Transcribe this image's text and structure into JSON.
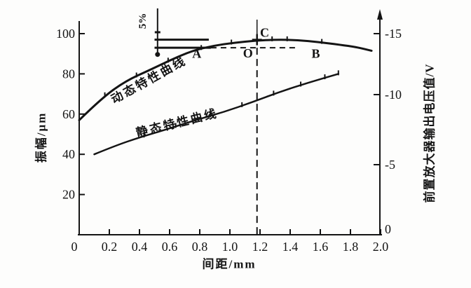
{
  "chart_data": {
    "type": "line",
    "title": "",
    "xlabel": "间距/mm",
    "ylabel_left": "振幅/μm",
    "ylabel_right": "前置放大器输出电压值/V",
    "xlim": [
      0,
      2.0
    ],
    "ylim_left": [
      0,
      106
    ],
    "ylim_right": [
      0,
      -16
    ],
    "grid": false,
    "x_ticks": [
      "0",
      "0.2",
      "0.4",
      "0.6",
      "0.8",
      "1.0",
      "1.2",
      "1.4",
      "1.6",
      "1.8",
      "2.0"
    ],
    "x_tick_values": [
      0,
      0.2,
      0.4,
      0.6,
      0.8,
      1.0,
      1.2,
      1.4,
      1.6,
      1.8,
      2.0
    ],
    "y_ticks_left": [
      "100",
      "80",
      "60",
      "40",
      "20"
    ],
    "y_tick_values_left": [
      100,
      80,
      60,
      40,
      20
    ],
    "y_ticks_right": [
      "-15",
      "-10",
      "-5",
      "0"
    ],
    "y_tick_values_right": [
      -15,
      -10,
      -5,
      0
    ],
    "series": [
      {
        "name": "动态特性曲线",
        "x": [
          0,
          0.15,
          0.31,
          0.47,
          0.61,
          0.75,
          0.89,
          1.03,
          1.17,
          1.31,
          1.45,
          1.59,
          1.73,
          1.84,
          1.94
        ],
        "y": [
          57,
          68,
          76.5,
          82,
          87,
          91.5,
          94,
          95.5,
          96.5,
          97,
          96.8,
          95.8,
          94.5,
          93.3,
          91.5
        ]
      },
      {
        "name": "静态特性曲线",
        "x": [
          0.1,
          0.24,
          0.4,
          0.59,
          0.77,
          0.96,
          1.15,
          1.33,
          1.52,
          1.72
        ],
        "y": [
          40,
          44.3,
          48.4,
          52.6,
          57,
          61,
          66,
          71,
          75.6,
          80
        ]
      }
    ],
    "annotations": {
      "percent_label": "5%",
      "points": [
        {
          "label": "A",
          "x": 0.78,
          "y": 90.0
        },
        {
          "label": "O",
          "x": 1.12,
          "y": 90.3
        },
        {
          "label": "C",
          "x": 1.23,
          "y": 100.5
        },
        {
          "label": "B",
          "x": 1.57,
          "y": 90.0
        }
      ],
      "guides": {
        "vline_x": 1.18,
        "band_top_level": 97,
        "band_bottom_level": 93,
        "band_x_start": 0.5,
        "band_x_end": 0.86,
        "band_dash_end": 1.45,
        "percent_marker_x": 0.52,
        "percent_dot_level": 90
      }
    }
  }
}
